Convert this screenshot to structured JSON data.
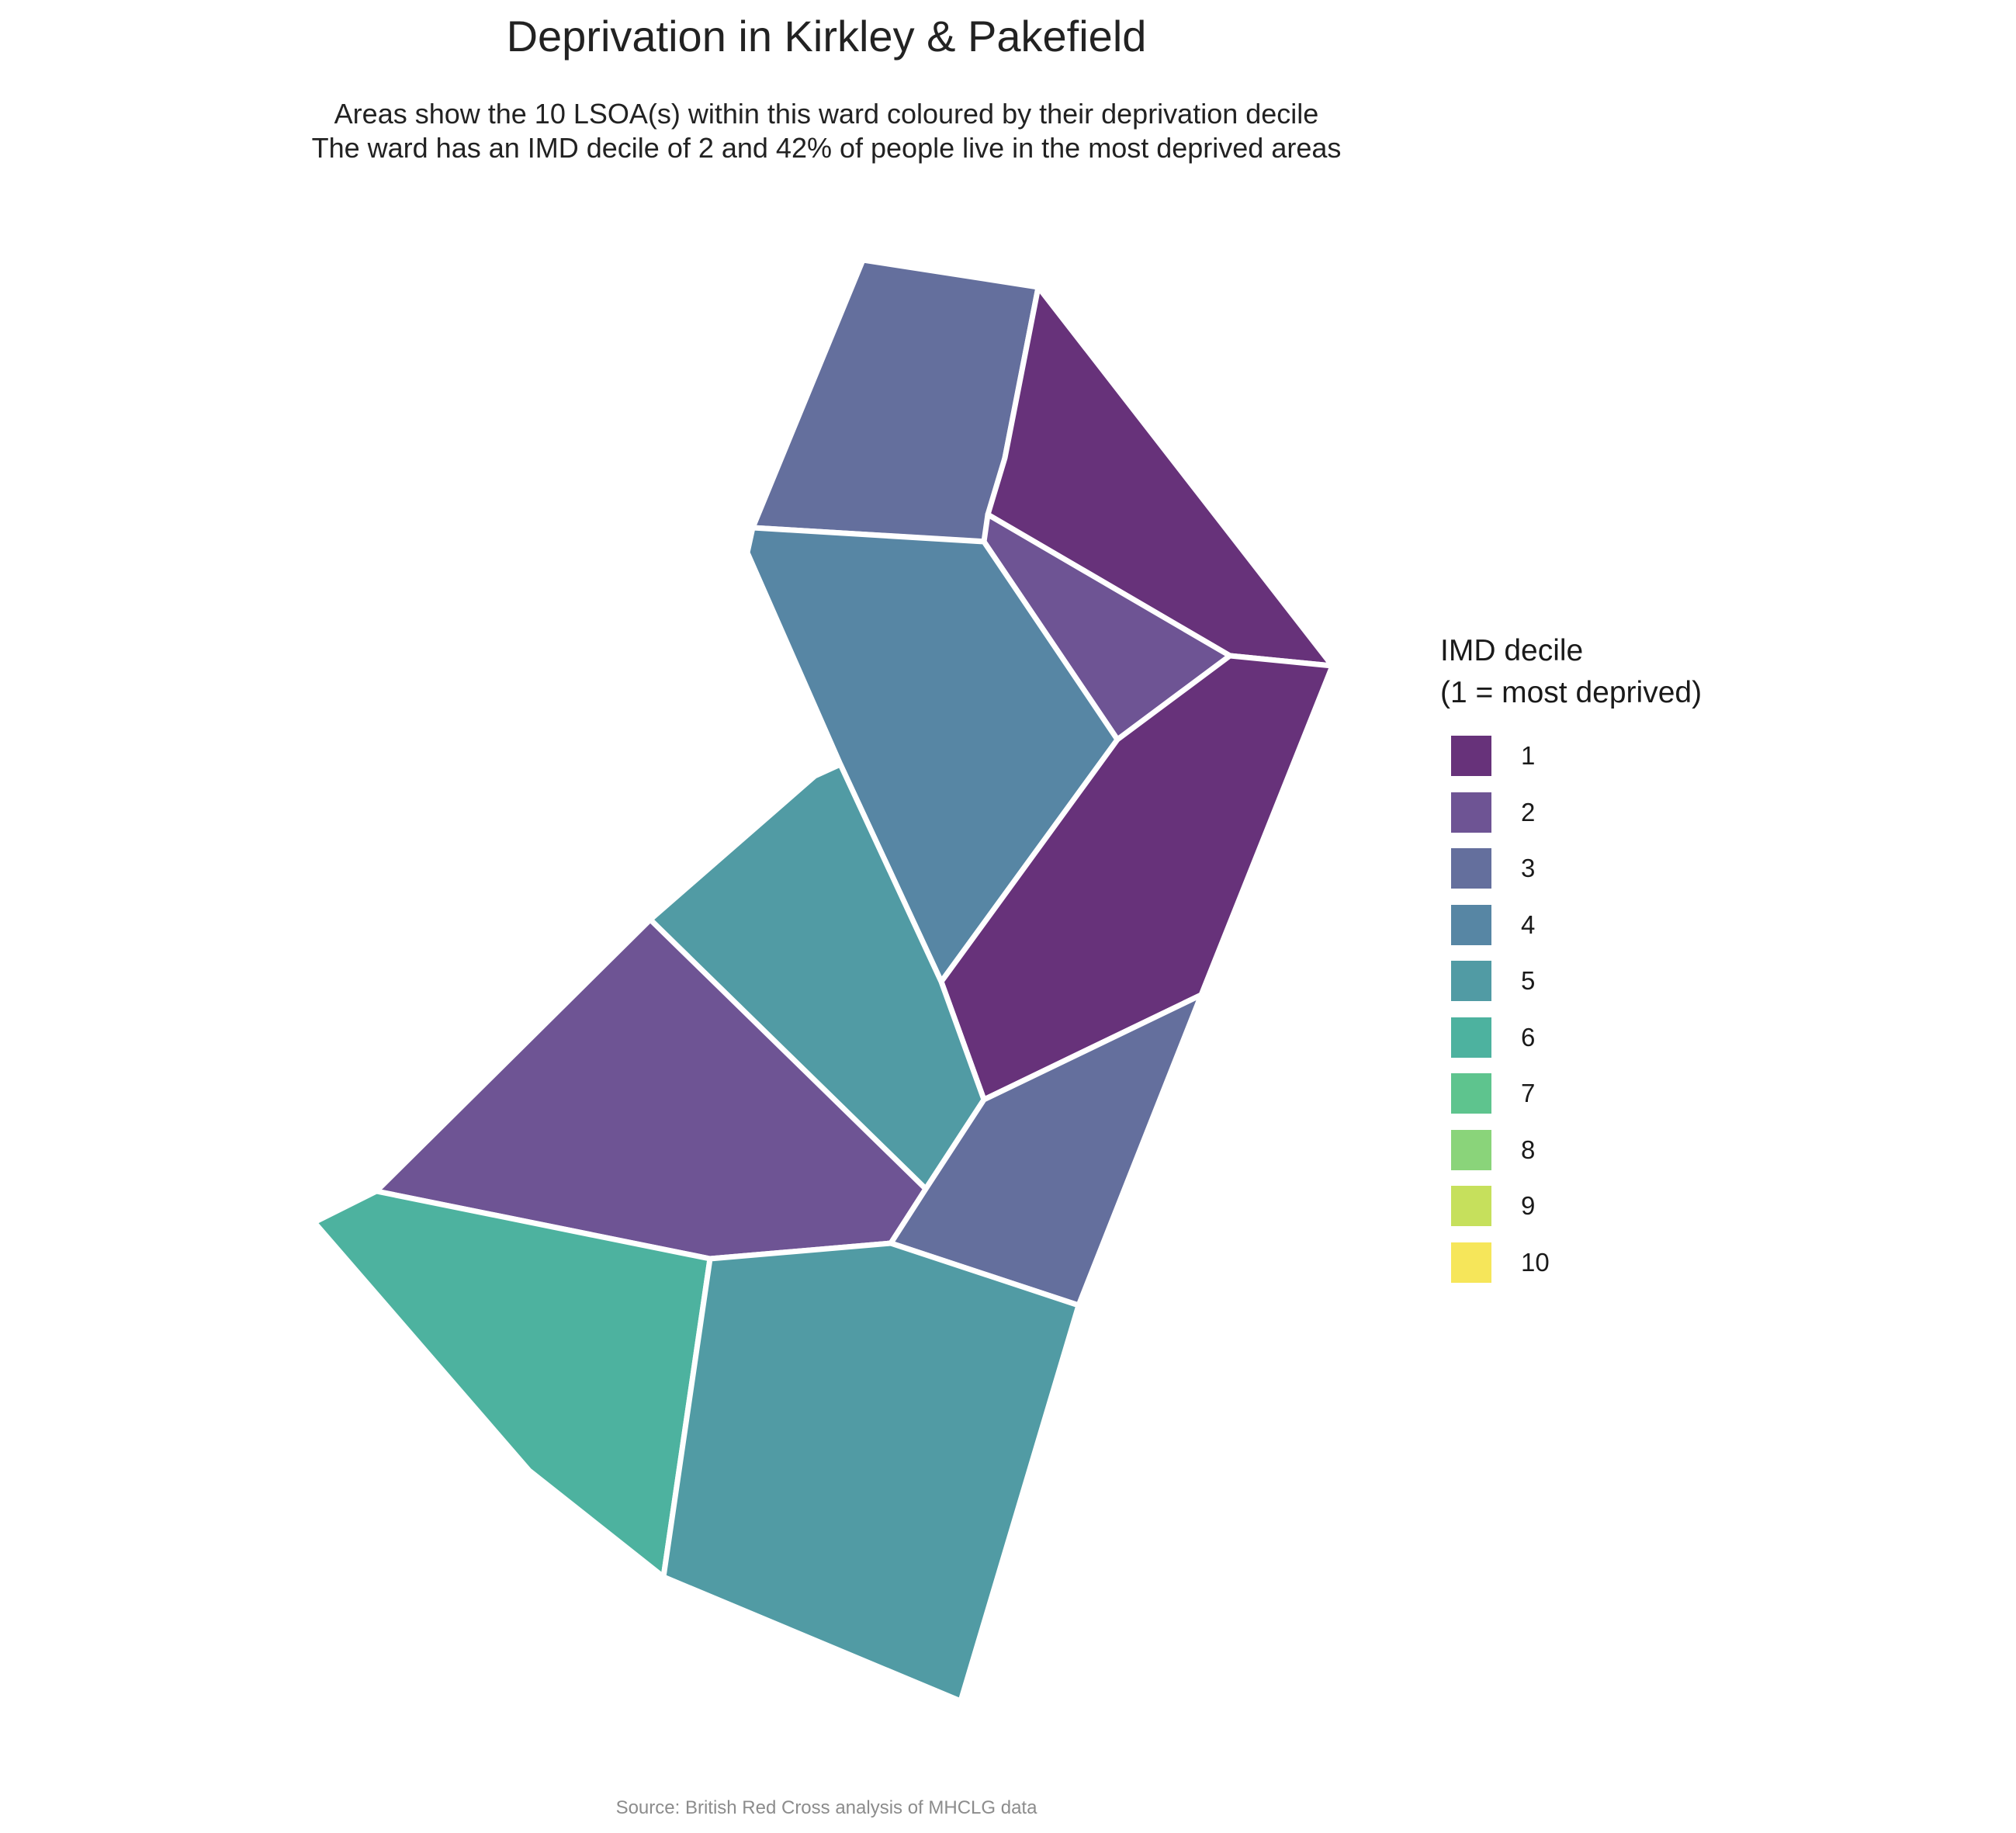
{
  "title": "Deprivation in Kirkley & Pakefield",
  "subtitle_line1": "Areas show the 10 LSOA(s) within this ward coloured by their deprivation decile",
  "subtitle_line2": "The ward has an IMD decile of 2 and 42% of people live in the most deprived areas",
  "caption": "Source: British Red Cross analysis of MHCLG data",
  "legend": {
    "title_line1": "IMD decile",
    "title_line2": "(1 = most deprived)",
    "items": [
      {
        "label": "1",
        "color": "#67327a"
      },
      {
        "label": "2",
        "color": "#6e5494"
      },
      {
        "label": "3",
        "color": "#646f9d"
      },
      {
        "label": "4",
        "color": "#5786a4"
      },
      {
        "label": "5",
        "color": "#519ba4"
      },
      {
        "label": "6",
        "color": "#4db29f"
      },
      {
        "label": "7",
        "color": "#5ec48e"
      },
      {
        "label": "8",
        "color": "#8ad47a"
      },
      {
        "label": "9",
        "color": "#c6e05c"
      },
      {
        "label": "10",
        "color": "#f6e65a"
      }
    ]
  },
  "areas": [
    {
      "decile": 3
    },
    {
      "decile": 1
    },
    {
      "decile": 2
    },
    {
      "decile": 4
    },
    {
      "decile": 1
    },
    {
      "decile": 5
    },
    {
      "decile": 2
    },
    {
      "decile": 3
    },
    {
      "decile": 6
    },
    {
      "decile": 5
    }
  ]
}
